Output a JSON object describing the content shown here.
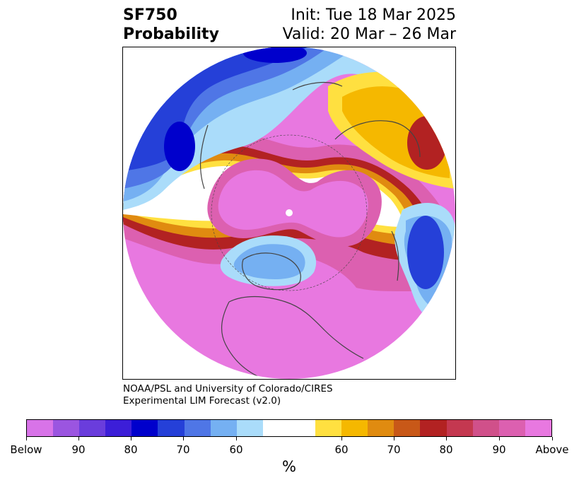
{
  "title": {
    "variable": "SF750",
    "product": "Probability",
    "init": "Init: Tue 18 Mar 2025",
    "valid": "Valid: 20 Mar – 26 Mar"
  },
  "credit": {
    "line1": "NOAA/PSL and University of Colorado/CIRES",
    "line2": "Experimental LIM Forecast (v2.0)"
  },
  "colorbar": {
    "colors": [
      "#d873e8",
      "#9b55e0",
      "#6a3ddc",
      "#3c1ed8",
      "#0000cc",
      "#2540d8",
      "#4f76e6",
      "#75b0f2",
      "#aadcfa",
      "#ffffff",
      "#ffe040",
      "#f5b800",
      "#e08b10",
      "#c85818",
      "#b22222",
      "#c43850",
      "#d0508a",
      "#dc60b0",
      "#e878e0"
    ],
    "tick_labels": [
      "Below",
      "90",
      "80",
      "70",
      "60",
      "60",
      "70",
      "80",
      "90",
      "Above"
    ],
    "unit": "%"
  },
  "map": {
    "projection": "north-polar-stereographic",
    "colors": {
      "above_max": "#e878e0",
      "above_high": "#dc60b0",
      "above_mid": "#b22222",
      "above_low": "#e08b10",
      "above_min": "#ffe040",
      "below_min": "#aadcfa",
      "below_low": "#75b0f2",
      "below_mid": "#4f76e6",
      "below_high": "#2540d8",
      "below_max": "#0000cc"
    }
  }
}
